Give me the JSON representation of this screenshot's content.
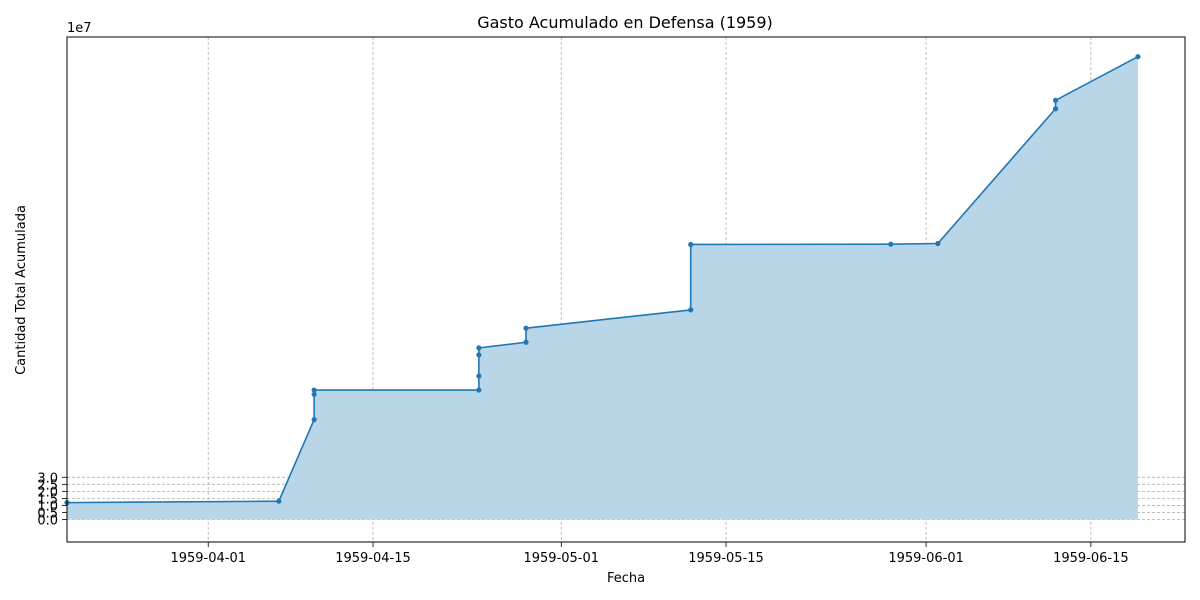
{
  "chart_data": {
    "type": "area",
    "title": "Gasto Acumulado en Defensa (1959)",
    "xlabel": "Fecha",
    "ylabel": "Cantidad Total Acumulada",
    "y_offset_label": "1e7",
    "y_scale": 10000000,
    "xlim": [
      "1959-03-20",
      "1959-06-23"
    ],
    "ylim": [
      -1.6,
      34.3
    ],
    "x_ticks": [
      "1959-04-01",
      "1959-04-15",
      "1959-05-01",
      "1959-05-15",
      "1959-06-01",
      "1959-06-15"
    ],
    "y_ticks": [
      0.0,
      0.5,
      1.0,
      1.5,
      2.0,
      2.5,
      3.0
    ],
    "y_tick_labels": [
      "0.0",
      "0.5",
      "1.0",
      "1.5",
      "2.0",
      "2.5",
      "3.0"
    ],
    "grid": true,
    "colors": {
      "line": "#1f77b4",
      "fill": "#b9d5e8",
      "grid": "#b0b0b0"
    },
    "series": [
      {
        "dates": [
          "1959-03-20",
          "1959-04-07",
          "1959-04-10",
          "1959-04-10",
          "1959-04-10",
          "1959-04-24",
          "1959-04-24",
          "1959-04-24",
          "1959-04-24",
          "1959-04-28",
          "1959-04-28",
          "1959-05-12",
          "1959-05-12",
          "1959-05-29",
          "1959-06-02",
          "1959-06-12",
          "1959-06-12",
          "1959-06-19"
        ],
        "values": [
          1.2,
          1.3,
          7.1,
          8.9,
          9.2,
          9.2,
          10.2,
          11.7,
          12.2,
          12.6,
          13.6,
          14.9,
          19.55,
          19.57,
          19.62,
          29.2,
          29.8,
          32.9
        ]
      }
    ]
  }
}
